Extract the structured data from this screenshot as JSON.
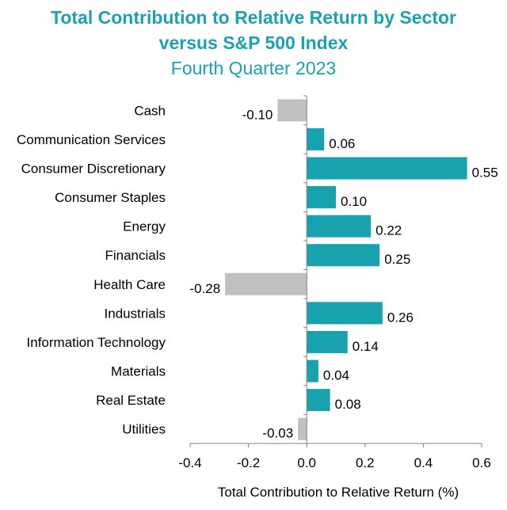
{
  "chart_data": {
    "type": "bar",
    "orientation": "horizontal",
    "title": "Total Contribution to Relative Return by Sector",
    "title_line2": "versus S&P 500 Index",
    "subtitle": "Fourth Quarter 2023",
    "xlabel": "Total Contribution to Relative Return (%)",
    "ylabel": "",
    "xlim": [
      -0.4,
      0.6
    ],
    "xticks": [
      "-0.4",
      "-0.2",
      "0.0",
      "0.2",
      "0.4",
      "0.6"
    ],
    "xtick_values": [
      -0.4,
      -0.2,
      0.0,
      0.2,
      0.4,
      0.6
    ],
    "categories": [
      "Cash",
      "Communication Services",
      "Consumer Discretionary",
      "Consumer Staples",
      "Energy",
      "Financials",
      "Health Care",
      "Industrials",
      "Information Technology",
      "Materials",
      "Real Estate",
      "Utilities"
    ],
    "values": [
      -0.1,
      0.06,
      0.55,
      0.1,
      0.22,
      0.25,
      -0.28,
      0.26,
      0.14,
      0.04,
      0.08,
      -0.03
    ],
    "value_labels": [
      "-0.10",
      "0.06",
      "0.55",
      "0.10",
      "0.22",
      "0.25",
      "-0.28",
      "0.26",
      "0.14",
      "0.04",
      "0.08",
      "-0.03"
    ],
    "grid": false,
    "legend": "none",
    "colors": {
      "positive": "#17a2ad",
      "negative": "#c0c0c0",
      "title": "#1ba1b1",
      "axis": "#808080"
    }
  }
}
